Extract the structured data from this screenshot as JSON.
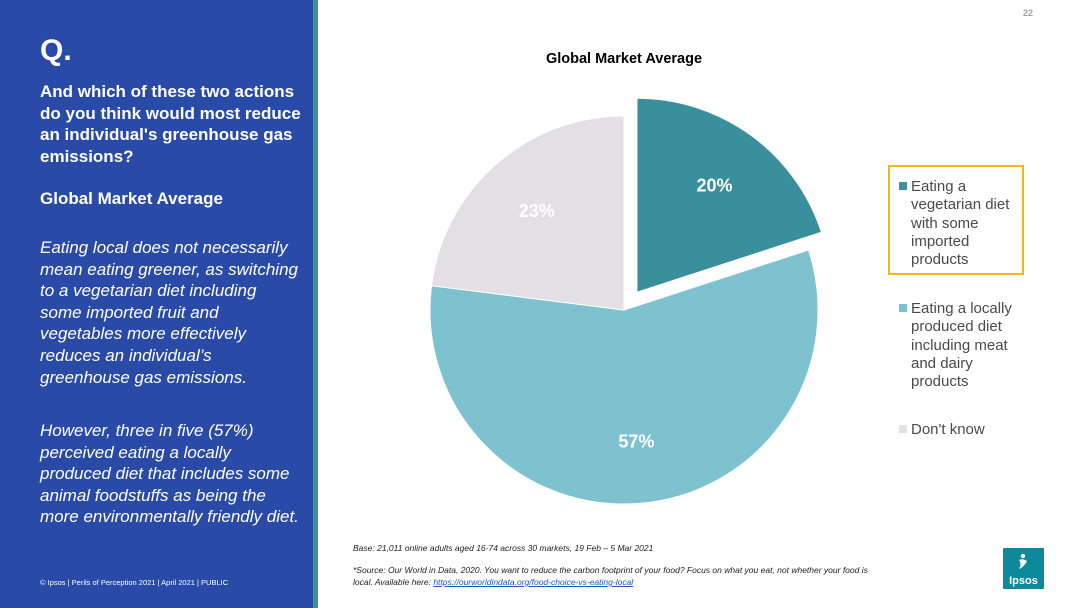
{
  "left_panel": {
    "q_mark": "Q.",
    "question": "And which of these two actions do you think would most reduce an individual's greenhouse gas emissions?",
    "subtitle": "Global Market Average",
    "paragraph1": "Eating local does not necessarily mean eating greener, as switching to a vegetarian diet including some imported fruit and vegetables more effectively reduces an individual’s greenhouse gas emissions.",
    "paragraph2": "However, three in five (57%) perceived eating a locally produced diet that includes some animal foodstuffs as being the more environmentally friendly diet.",
    "copyright": "© Ipsos | Perils of Perception 2021 | April 2021 | PUBLIC"
  },
  "page_number": "22",
  "chart_data": {
    "type": "pie",
    "title": "Global Market Average",
    "slices": [
      {
        "label": "Eating a vegetarian diet with some imported products",
        "value": 20,
        "value_label": "20%",
        "color": "#3a8f9d",
        "exploded": true,
        "highlighted": true
      },
      {
        "label": "Eating a locally produced diet including meat and dairy products",
        "value": 57,
        "value_label": "57%",
        "color": "#7fc2cf"
      },
      {
        "label": "Don't know",
        "value": 23,
        "value_label": "23%",
        "color": "#e2e0e5"
      }
    ],
    "legend_position": "right",
    "start_angle_deg": 0,
    "direction": "clockwise"
  },
  "footer": {
    "base_note": "Base: 21,011 online adults aged 16-74 across 30 markets,  19 Feb – 5 Mar 2021",
    "source_prefix": "*Source: Our World in Data, 2020. You want to reduce the carbon footprint of your food? Focus on what you eat, not whether your food is local.  Available here: ",
    "source_link": "https://ourworldindata.org/food-choice-vs-eating-local"
  },
  "logo": {
    "text": "Ipsos",
    "icon": "ipsos-logo-icon"
  }
}
